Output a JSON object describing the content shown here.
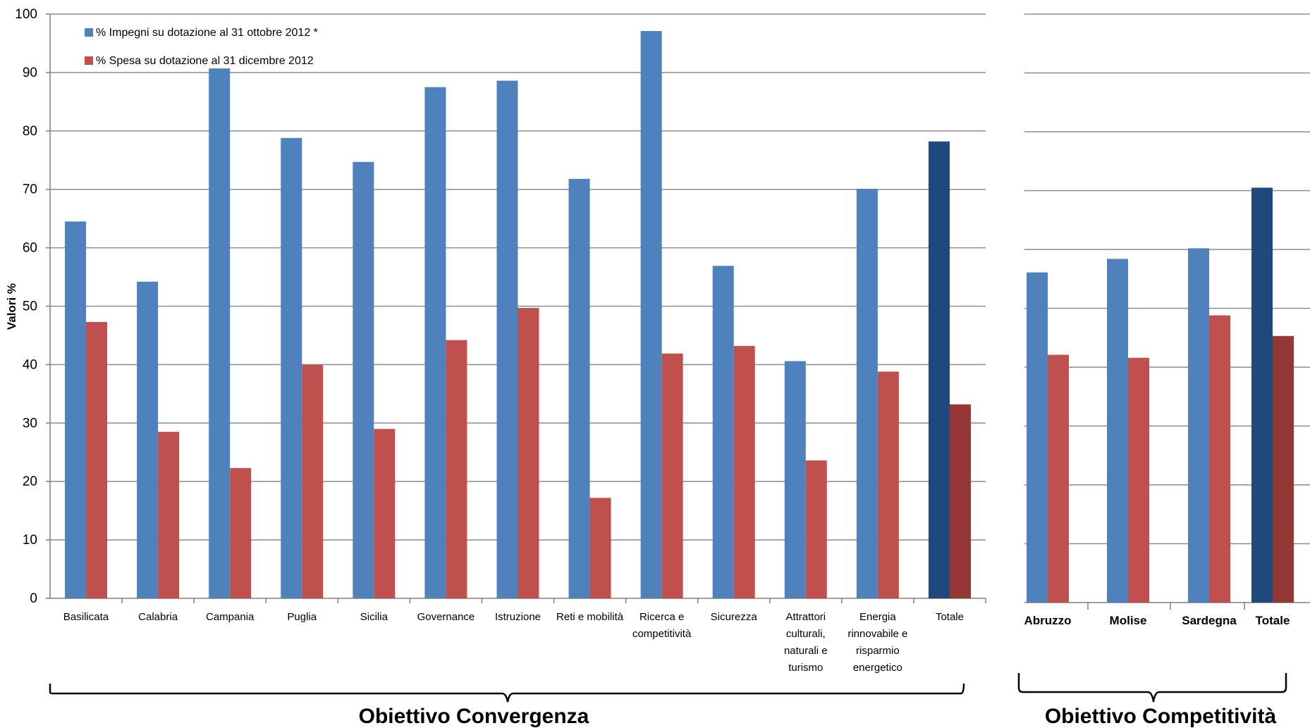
{
  "chart_data": [
    {
      "type": "bar",
      "group_label": "Obiettivo Convergenza",
      "ylabel": "Valori %",
      "ylim": [
        0,
        100
      ],
      "yticks": [
        "0",
        "10",
        "20",
        "30",
        "40",
        "50",
        "60",
        "70",
        "80",
        "90",
        "100"
      ],
      "grid": true,
      "legend_position": "top-left",
      "categories": [
        [
          "Basilicata"
        ],
        [
          "Calabria"
        ],
        [
          "Campania"
        ],
        [
          "Puglia"
        ],
        [
          "Sicilia"
        ],
        [
          "Governance"
        ],
        [
          "Istruzione"
        ],
        [
          "Reti e mobilità"
        ],
        [
          "Ricerca e",
          "competitività"
        ],
        [
          "Sicurezza"
        ],
        [
          "Attrattori",
          "culturali,",
          "naturali e",
          "turismo"
        ],
        [
          "Energia",
          "rinnovabile e",
          "risparmio",
          "energetico"
        ],
        [
          "Totale"
        ]
      ],
      "series": [
        {
          "name": "% Impegni su dotazione al 31 ottobre 2012 *",
          "color": "#4F81BD",
          "total_color": "#1F497D",
          "values": [
            64.5,
            54.2,
            90.7,
            78.8,
            74.7,
            87.5,
            88.6,
            71.8,
            97.1,
            56.9,
            40.6,
            70.1,
            78.2
          ]
        },
        {
          "name": "% Spesa su dotazione al 31 dicembre 2012",
          "color": "#C0504D",
          "total_color": "#953735",
          "values": [
            47.3,
            28.5,
            22.3,
            40.0,
            29.0,
            44.2,
            49.7,
            17.2,
            41.9,
            43.2,
            23.6,
            38.8,
            33.2
          ]
        }
      ]
    },
    {
      "type": "bar",
      "group_label": "Obiettivo Competitività",
      "ylim": [
        0,
        100
      ],
      "grid": true,
      "categories": [
        [
          "Abruzzo"
        ],
        [
          "Molise"
        ],
        [
          "Sardegna"
        ],
        [
          "Totale"
        ]
      ],
      "series": [
        {
          "name": "% Impegni su dotazione al 31 ottobre 2012 *",
          "color": "#4F81BD",
          "total_color": "#1F497D",
          "values": [
            56.1,
            58.4,
            60.2,
            70.5
          ]
        },
        {
          "name": "% Spesa su dotazione al 31 dicembre 2012",
          "color": "#C0504D",
          "total_color": "#953735",
          "values": [
            42.1,
            41.6,
            48.8,
            45.3
          ]
        }
      ]
    }
  ]
}
